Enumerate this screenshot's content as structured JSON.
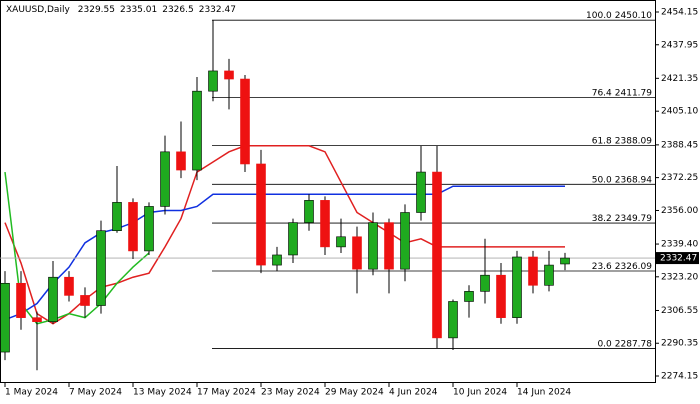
{
  "chart_data": {
    "type": "candlestick",
    "symbol": "XAUUSD,Daily",
    "categories": [
      "1 May 2024",
      null,
      null,
      null,
      "7 May 2024",
      null,
      null,
      null,
      "13 May 2024",
      null,
      null,
      null,
      "17 May 2024",
      null,
      null,
      null,
      "23 May 2024",
      null,
      null,
      null,
      "29 May 2024",
      null,
      null,
      null,
      "4 Jun 2024",
      null,
      null,
      null,
      "10 Jun 2024",
      null,
      null,
      null,
      "14 Jun 2024",
      null,
      null,
      null
    ],
    "open": [
      2286,
      2320,
      2303,
      2301,
      2323,
      2314,
      2309,
      2346,
      2360,
      2336,
      2358,
      2385,
      2376,
      2415,
      2425,
      2421,
      2379,
      2329,
      2334,
      2350,
      2361,
      2338,
      2343,
      2327,
      2350,
      2327,
      2355,
      2375,
      2293,
      2311,
      2316,
      2324,
      2303,
      2333,
      2319,
      2329.55
    ],
    "high": [
      2326,
      2326,
      2306,
      2331,
      2326,
      2318,
      2351,
      2378,
      2362,
      2360,
      2393,
      2400,
      2422,
      2450.1,
      2431,
      2423,
      2386,
      2338,
      2352,
      2364,
      2363,
      2352,
      2348,
      2355,
      2352,
      2359,
      2388,
      2388,
      2312,
      2319,
      2342,
      2330,
      2336,
      2336,
      2336,
      2335.01
    ],
    "low": [
      2282,
      2297,
      2277,
      2300,
      2311,
      2303,
      2305,
      2345,
      2332,
      2334,
      2354,
      2372,
      2371,
      2410,
      2406,
      2375,
      2325,
      2326,
      2330,
      2346,
      2334,
      2335,
      2315,
      2324,
      2315,
      2321,
      2351,
      2287.78,
      2287,
      2303,
      2310,
      2300,
      2300,
      2315,
      2316,
      2326.5
    ],
    "close": [
      2320,
      2303,
      2301,
      2323,
      2314,
      2309,
      2346,
      2360,
      2336,
      2358,
      2385,
      2376,
      2415,
      2425,
      2421,
      2379,
      2329,
      2334,
      2350,
      2361,
      2338,
      2343,
      2327,
      2350,
      2327,
      2355,
      2375,
      2293,
      2311,
      2316,
      2324,
      2303,
      2333,
      2319,
      2329,
      2332.47
    ],
    "bull_color": "#1faa1f",
    "bear_color": "#ee1111",
    "lines": [
      {
        "color": "#e02020",
        "values": [
          2350,
          2330,
          2305,
          2300,
          2305,
          2312,
          2318,
          2320,
          2323,
          2325,
          2338,
          2352,
          2375,
          2380,
          2385,
          2388,
          2388,
          2388,
          2388,
          2388,
          2385,
          2370,
          2355,
          2350,
          2345,
          2340,
          2342,
          2338,
          2338,
          2338,
          2338,
          2338,
          2338,
          2338,
          2338,
          2338
        ]
      },
      {
        "color": "#1030e0",
        "values": [
          2302,
          2305,
          2310,
          2320,
          2328,
          2340,
          2345,
          2347,
          2350,
          2355,
          2356,
          2356,
          2358,
          2364,
          2364,
          2364,
          2364,
          2364,
          2364,
          2364,
          2364,
          2364,
          2364,
          2364,
          2364,
          2364,
          2364,
          2364,
          2368,
          2368,
          2368,
          2368,
          2368,
          2368,
          2368,
          2368
        ]
      },
      {
        "color": "#22bb22",
        "values": [
          2375,
          2310,
          2300,
          2302,
          2305,
          2303,
          2310,
          2320,
          2328,
          2335,
          null,
          null,
          null,
          null,
          null,
          null,
          null,
          null,
          null,
          null,
          null,
          null,
          null,
          null,
          null,
          null,
          null,
          null,
          null,
          null,
          null,
          null,
          null,
          null,
          null,
          null
        ]
      }
    ],
    "fib_levels": [
      {
        "level": "100.0",
        "price": {
          "value": 2450.1,
          "label": "2450.10"
        }
      },
      {
        "level": "76.4",
        "price": 2411.79
      },
      {
        "level": "61.8",
        "price": 2388.09
      },
      {
        "level": "50.0",
        "price": 2368.94
      },
      {
        "level": "38.2",
        "price": 2349.79
      },
      {
        "level": "23.6",
        "price": 2326.09
      },
      {
        "level": "0.0",
        "price": 2287.78
      }
    ],
    "ylim": [
      2274.15,
      2454.15
    ],
    "yticks": [
      2454.15,
      2437.95,
      2421.35,
      {
        "value": 2405.1,
        "label": "2405.10"
      },
      2388.45,
      2372.25,
      {
        "value": 2356,
        "label": "2356.00"
      },
      {
        "value": 2339.4,
        "label": "2339.40"
      },
      {
        "value": 2323.2,
        "label": "2323.20"
      },
      2306.55,
      2290.35,
      2274.15
    ]
  }
}
